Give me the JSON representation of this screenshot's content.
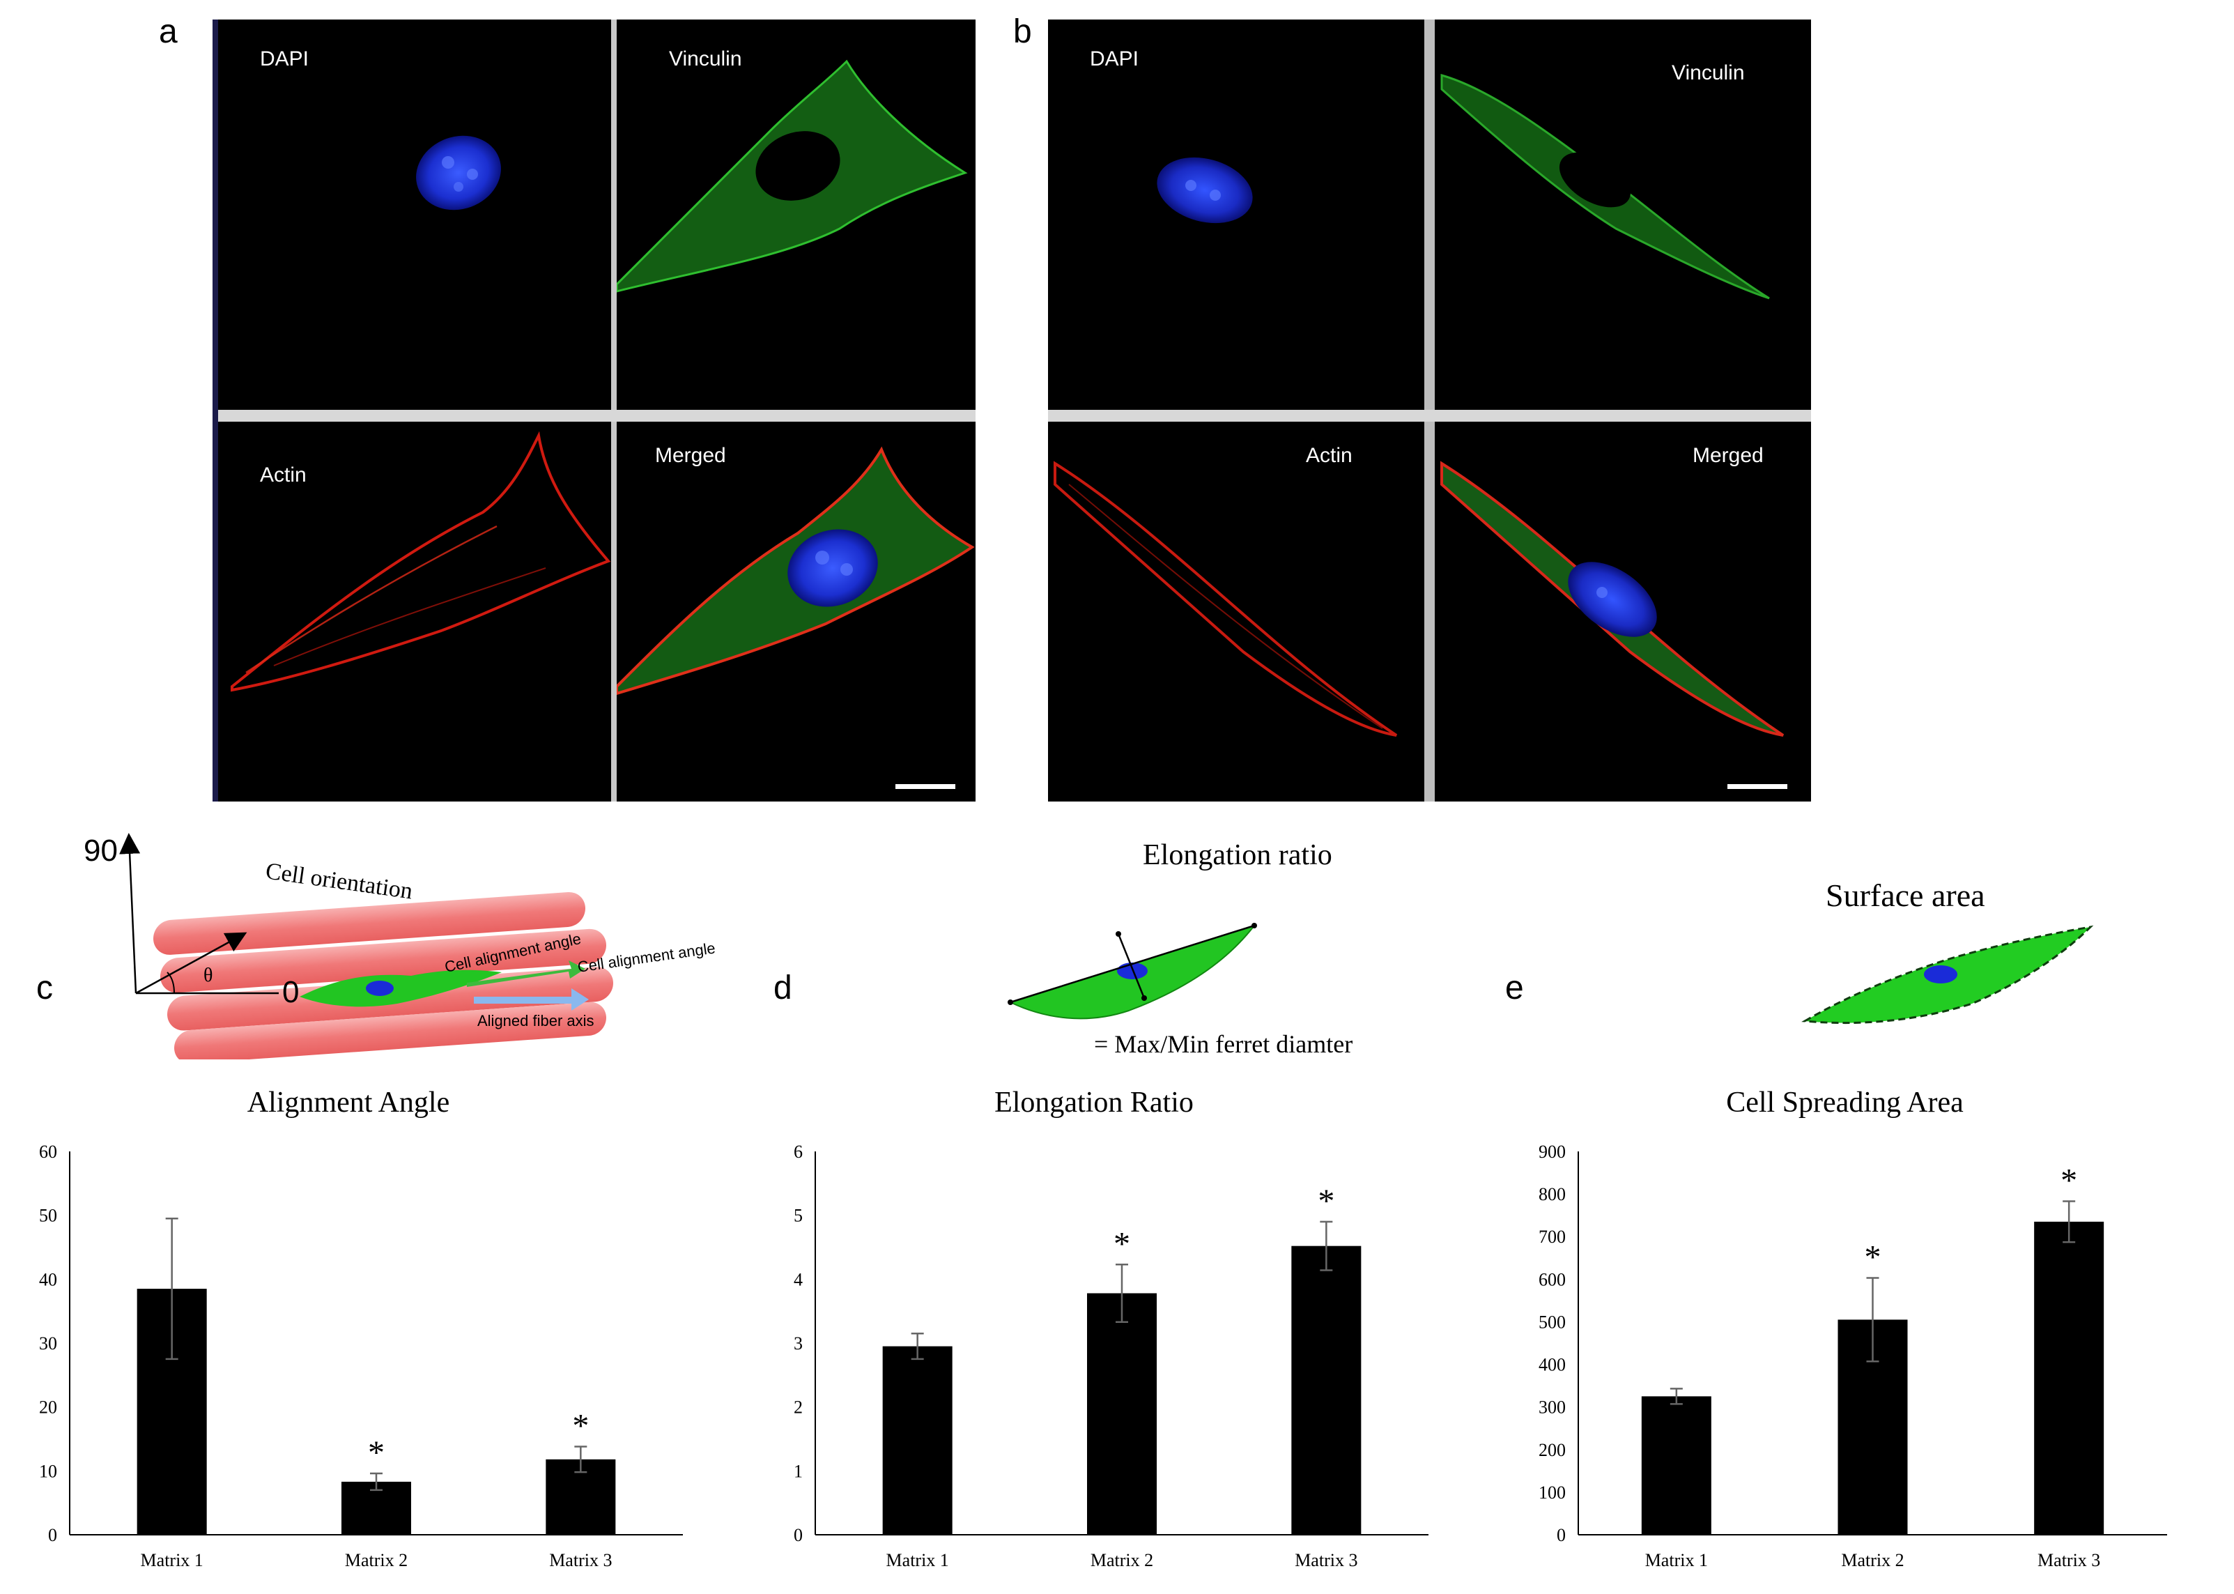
{
  "panel_letters": {
    "a": "a",
    "b": "b",
    "c": "c",
    "d": "d",
    "e": "e"
  },
  "micrographs": {
    "a": {
      "dapi": "DAPI",
      "vinculin": "Vinculin",
      "actin": "Actin",
      "merged": "Merged"
    },
    "b": {
      "dapi": "DAPI",
      "vinculin": "Vinculin",
      "actin": "Actin",
      "merged": "Merged"
    }
  },
  "colors": {
    "dapi": "#1f3dff",
    "vinculin": "#1f9a1f",
    "actin": "#e01e12",
    "fiber": "#f08080",
    "cell": "#22c522",
    "bar": "#000000"
  },
  "schematic_c": {
    "axis_top": "90",
    "axis_right": "0",
    "theta": "θ",
    "title": "Cell orientation",
    "label_alignment_1": "Cell alignment angle",
    "label_alignment_2": "Cell alignment angle",
    "label_fiber": "Aligned fiber axis"
  },
  "schematic_d": {
    "title": "Elongation ratio",
    "formula": "= Max/Min ferret diamter"
  },
  "schematic_e": {
    "title": "Surface area"
  },
  "chart_data": [
    {
      "type": "bar",
      "title": "Alignment Angle",
      "categories": [
        "Matrix 1",
        "Matrix 2",
        "Matrix 3"
      ],
      "values": [
        38.5,
        8.3,
        11.8
      ],
      "errors": [
        11,
        1.3,
        2
      ],
      "significance": [
        "",
        "*",
        "*"
      ],
      "ylim": [
        0,
        60
      ],
      "yticks": [
        0,
        10,
        20,
        30,
        40,
        50,
        60
      ],
      "xlabel": "",
      "ylabel": "",
      "grid": false
    },
    {
      "type": "bar",
      "title": "Elongation Ratio",
      "categories": [
        "Matrix 1",
        "Matrix 2",
        "Matrix 3"
      ],
      "values": [
        2.95,
        3.78,
        4.52
      ],
      "errors": [
        0.2,
        0.45,
        0.38
      ],
      "significance": [
        "",
        "*",
        "*"
      ],
      "ylim": [
        0,
        6
      ],
      "yticks": [
        0,
        1,
        2,
        3,
        4,
        5,
        6
      ],
      "xlabel": "",
      "ylabel": "",
      "grid": false
    },
    {
      "type": "bar",
      "title": "Cell Spreading Area",
      "categories": [
        "Matrix 1",
        "Matrix 2",
        "Matrix 3"
      ],
      "values": [
        325,
        505,
        735
      ],
      "errors": [
        18,
        98,
        48
      ],
      "significance": [
        "",
        "*",
        "*"
      ],
      "ylim": [
        0,
        900
      ],
      "yticks": [
        0,
        100,
        200,
        300,
        400,
        500,
        600,
        700,
        800,
        900
      ],
      "xlabel": "",
      "ylabel": "",
      "grid": false
    }
  ]
}
